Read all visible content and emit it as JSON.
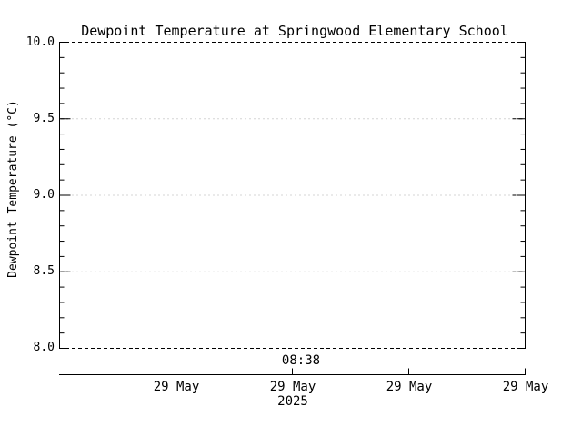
{
  "title": "Dewpoint Temperature at Springwood Elementary School",
  "y_axis": {
    "label": "Dewpoint Temperature (°C)",
    "tick_labels": [
      "10.0",
      "9.5",
      "9.0",
      "8.5",
      "8.0"
    ]
  },
  "x_axis": {
    "annotation_time": "08:38",
    "tick_labels": [
      "29 May",
      "29 May",
      "29 May",
      "29 May"
    ],
    "year": "2025"
  },
  "colors": {
    "foreground": "#000000",
    "background": "#ffffff",
    "gridline": "#aaaaaa"
  },
  "chart_data": {
    "type": "line",
    "title": "Dewpoint Temperature at Springwood Elementary School",
    "xlabel": "",
    "ylabel": "Dewpoint Temperature (°C)",
    "ylim": [
      8.0,
      10.0
    ],
    "y_major_ticks": [
      8.0,
      8.5,
      9.0,
      9.5,
      10.0
    ],
    "y_minor_tick_interval": 0.1,
    "x_tick_labels": [
      "29 May",
      "29 May",
      "29 May",
      "29 May"
    ],
    "x_year": "2025",
    "x_time_annotation": "08:38",
    "grid": "horizontal dotted gridlines at major y ticks; top and bottom borders dashed",
    "legend_position": "none",
    "series": []
  }
}
